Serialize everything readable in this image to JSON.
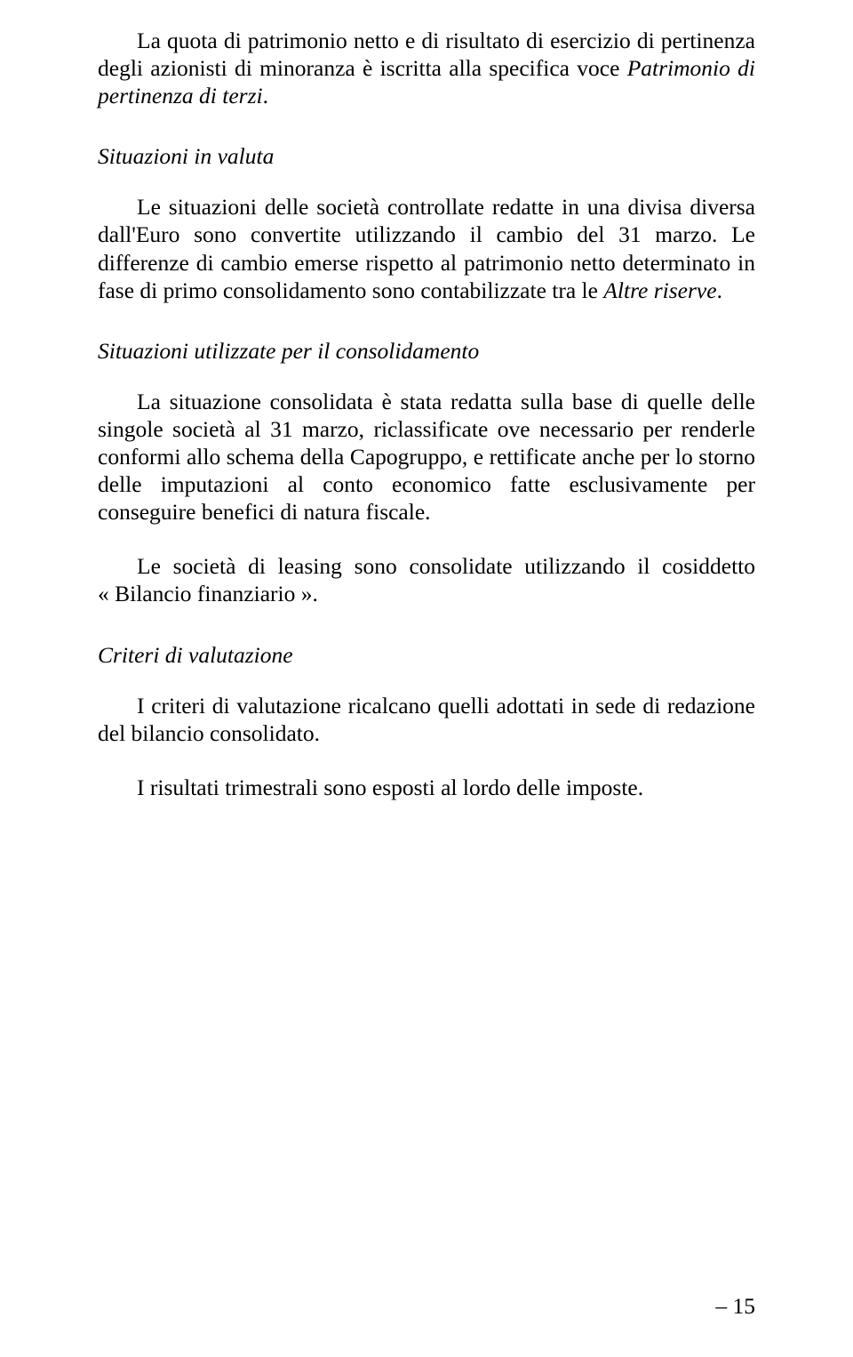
{
  "paragraphs": {
    "p1_a": "La quota di patrimonio netto e di risultato di esercizio di pertinenza degli azionisti di minoranza è iscritta alla specifica voce ",
    "p1_i": "Patrimonio di pertinenza di terzi",
    "p1_b": ".",
    "h1": "Situazioni in valuta",
    "p2_a": "Le situazioni delle società controllate redatte in una divisa diversa dall'Euro sono convertite utilizzando il cambio del 31 marzo. Le differenze di cambio emerse rispetto al patrimonio netto determinato in fase di primo consolidamento sono contabilizzate tra le ",
    "p2_i": "Altre riserve",
    "p2_b": ".",
    "h2": "Situazioni utilizzate per il consolidamento",
    "p3": "La situazione consolidata è stata redatta sulla base di quelle delle singole società al 31 marzo, riclassificate ove necessario per renderle conformi allo schema della Capogruppo, e rettificate anche per lo storno delle imputazioni al conto economico fatte esclusivamente per conseguire benefici di natura fiscale.",
    "p4": "Le società di leasing sono consolidate utilizzando il cosiddetto « Bilancio finanziario ».",
    "h3": "Criteri di valutazione",
    "p5": "I criteri di valutazione ricalcano quelli adottati in sede di redazione del bilancio consolidato.",
    "p6": "I risultati trimestrali sono esposti al lordo delle imposte."
  },
  "page_number": "– 15"
}
